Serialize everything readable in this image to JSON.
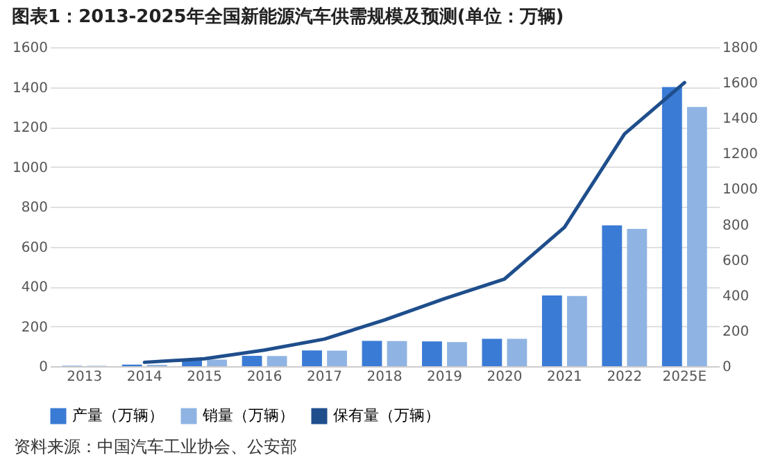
{
  "chart_data": {
    "type": "bar",
    "title": "图表1：2013-2025年全国新能源汽车供需规模及预测(单位：万辆)",
    "categories": [
      "2013",
      "2014",
      "2015",
      "2016",
      "2017",
      "2018",
      "2019",
      "2020",
      "2021",
      "2022",
      "2025E"
    ],
    "series": [
      {
        "name": "产量（万辆）",
        "color": "#3a7bd5",
        "values": [
          2,
          8,
          34,
          52,
          79,
          127,
          124,
          137,
          355,
          706,
          1400
        ]
      },
      {
        "name": "销量（万辆）",
        "color": "#8fb4e3",
        "values": [
          2,
          7,
          33,
          51,
          78,
          126,
          121,
          137,
          352,
          689,
          1300
        ]
      },
      {
        "name": "保有量（万辆）",
        "type": "line",
        "axis": "y2",
        "color": "#1f4e8c",
        "values": [
          null,
          22,
          42,
          91,
          153,
          261,
          381,
          492,
          784,
          1310,
          1600
        ]
      }
    ],
    "ylim": [
      0,
      1600
    ],
    "yticks": [
      0,
      200,
      400,
      600,
      800,
      1000,
      1200,
      1400,
      1600
    ],
    "y2lim": [
      0,
      1800
    ],
    "y2ticks": [
      0,
      200,
      400,
      600,
      800,
      1000,
      1200,
      1400,
      1600,
      1800
    ],
    "grid": "y",
    "legend": "bottom",
    "annotations": [
      "资料来源：中国汽车工业协会、公安部"
    ]
  }
}
